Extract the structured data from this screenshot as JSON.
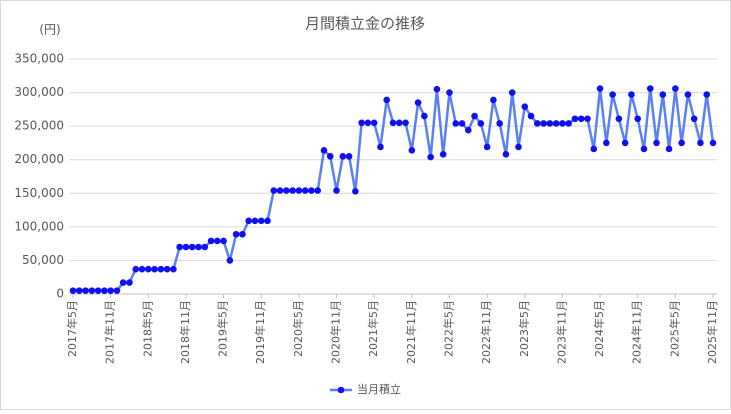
{
  "chart_data": {
    "type": "line",
    "title": "月間積立金の推移",
    "ylabel": "(円)",
    "categories": [
      "2017年5月",
      null,
      null,
      null,
      null,
      null,
      "2017年11月",
      null,
      null,
      null,
      null,
      null,
      "2018年5月",
      null,
      null,
      null,
      null,
      null,
      "2018年11月",
      null,
      null,
      null,
      null,
      null,
      "2019年5月",
      null,
      null,
      null,
      null,
      null,
      "2019年11月",
      null,
      null,
      null,
      null,
      null,
      "2020年5月",
      null,
      null,
      null,
      null,
      null,
      "2020年11月",
      null,
      null,
      null,
      null,
      null,
      "2021年5月",
      null,
      null,
      null,
      null,
      null,
      "2021年11月",
      null,
      null,
      null,
      null,
      null,
      "2022年5月",
      null,
      null,
      null,
      null,
      null,
      "2022年11月",
      null,
      null,
      null,
      null,
      null,
      "2023年5月",
      null,
      null,
      null,
      null,
      null,
      "2023年11月",
      null,
      null,
      null,
      null,
      null,
      "2024年5月",
      null,
      null,
      null,
      null,
      null,
      "2024年11月",
      null,
      null,
      null,
      null,
      null,
      "2025年5月",
      null,
      null,
      null,
      null,
      null,
      "2025年11月"
    ],
    "series": [
      {
        "name": "当月積立",
        "color": "#5b7ff5",
        "marker_color": "#1010f0",
        "values": [
          5000,
          5000,
          5000,
          5000,
          5000,
          5000,
          5000,
          5000,
          17000,
          17000,
          37000,
          37000,
          37000,
          37000,
          37000,
          37000,
          37000,
          70000,
          70000,
          70000,
          70000,
          70000,
          79000,
          79000,
          79000,
          50000,
          89000,
          89000,
          109000,
          109000,
          109000,
          109000,
          154000,
          154000,
          154000,
          154000,
          154000,
          154000,
          154000,
          154000,
          214000,
          205000,
          154000,
          205000,
          205000,
          153000,
          255000,
          255000,
          255000,
          219000,
          289000,
          255000,
          255000,
          255000,
          214000,
          285000,
          265000,
          204000,
          305000,
          208000,
          300000,
          254000,
          254000,
          244000,
          265000,
          254000,
          219000,
          289000,
          254000,
          208000,
          300000,
          219000,
          279000,
          265000,
          254000,
          254000,
          254000,
          254000,
          254000,
          254000,
          261000,
          261000,
          261000,
          216000,
          306000,
          225000,
          297000,
          261000,
          225000,
          297000,
          261000,
          216000,
          306000,
          225000,
          297000,
          216000,
          306000,
          225000,
          297000,
          261000,
          225000,
          297000,
          225000
        ]
      }
    ],
    "ylim": [
      0,
      350000
    ],
    "yticks": [
      0,
      {
        "value": 50000,
        "label": "50,000"
      },
      {
        "value": 100000,
        "label": "100,000"
      },
      {
        "value": 150000,
        "label": "150,000"
      },
      {
        "value": 200000,
        "label": "200,000"
      },
      {
        "value": 250000,
        "label": "250,000"
      },
      {
        "value": 300000,
        "label": "300,000"
      },
      {
        "value": 350000,
        "label": "350,000"
      }
    ],
    "grid": true,
    "legend": "bottom"
  }
}
